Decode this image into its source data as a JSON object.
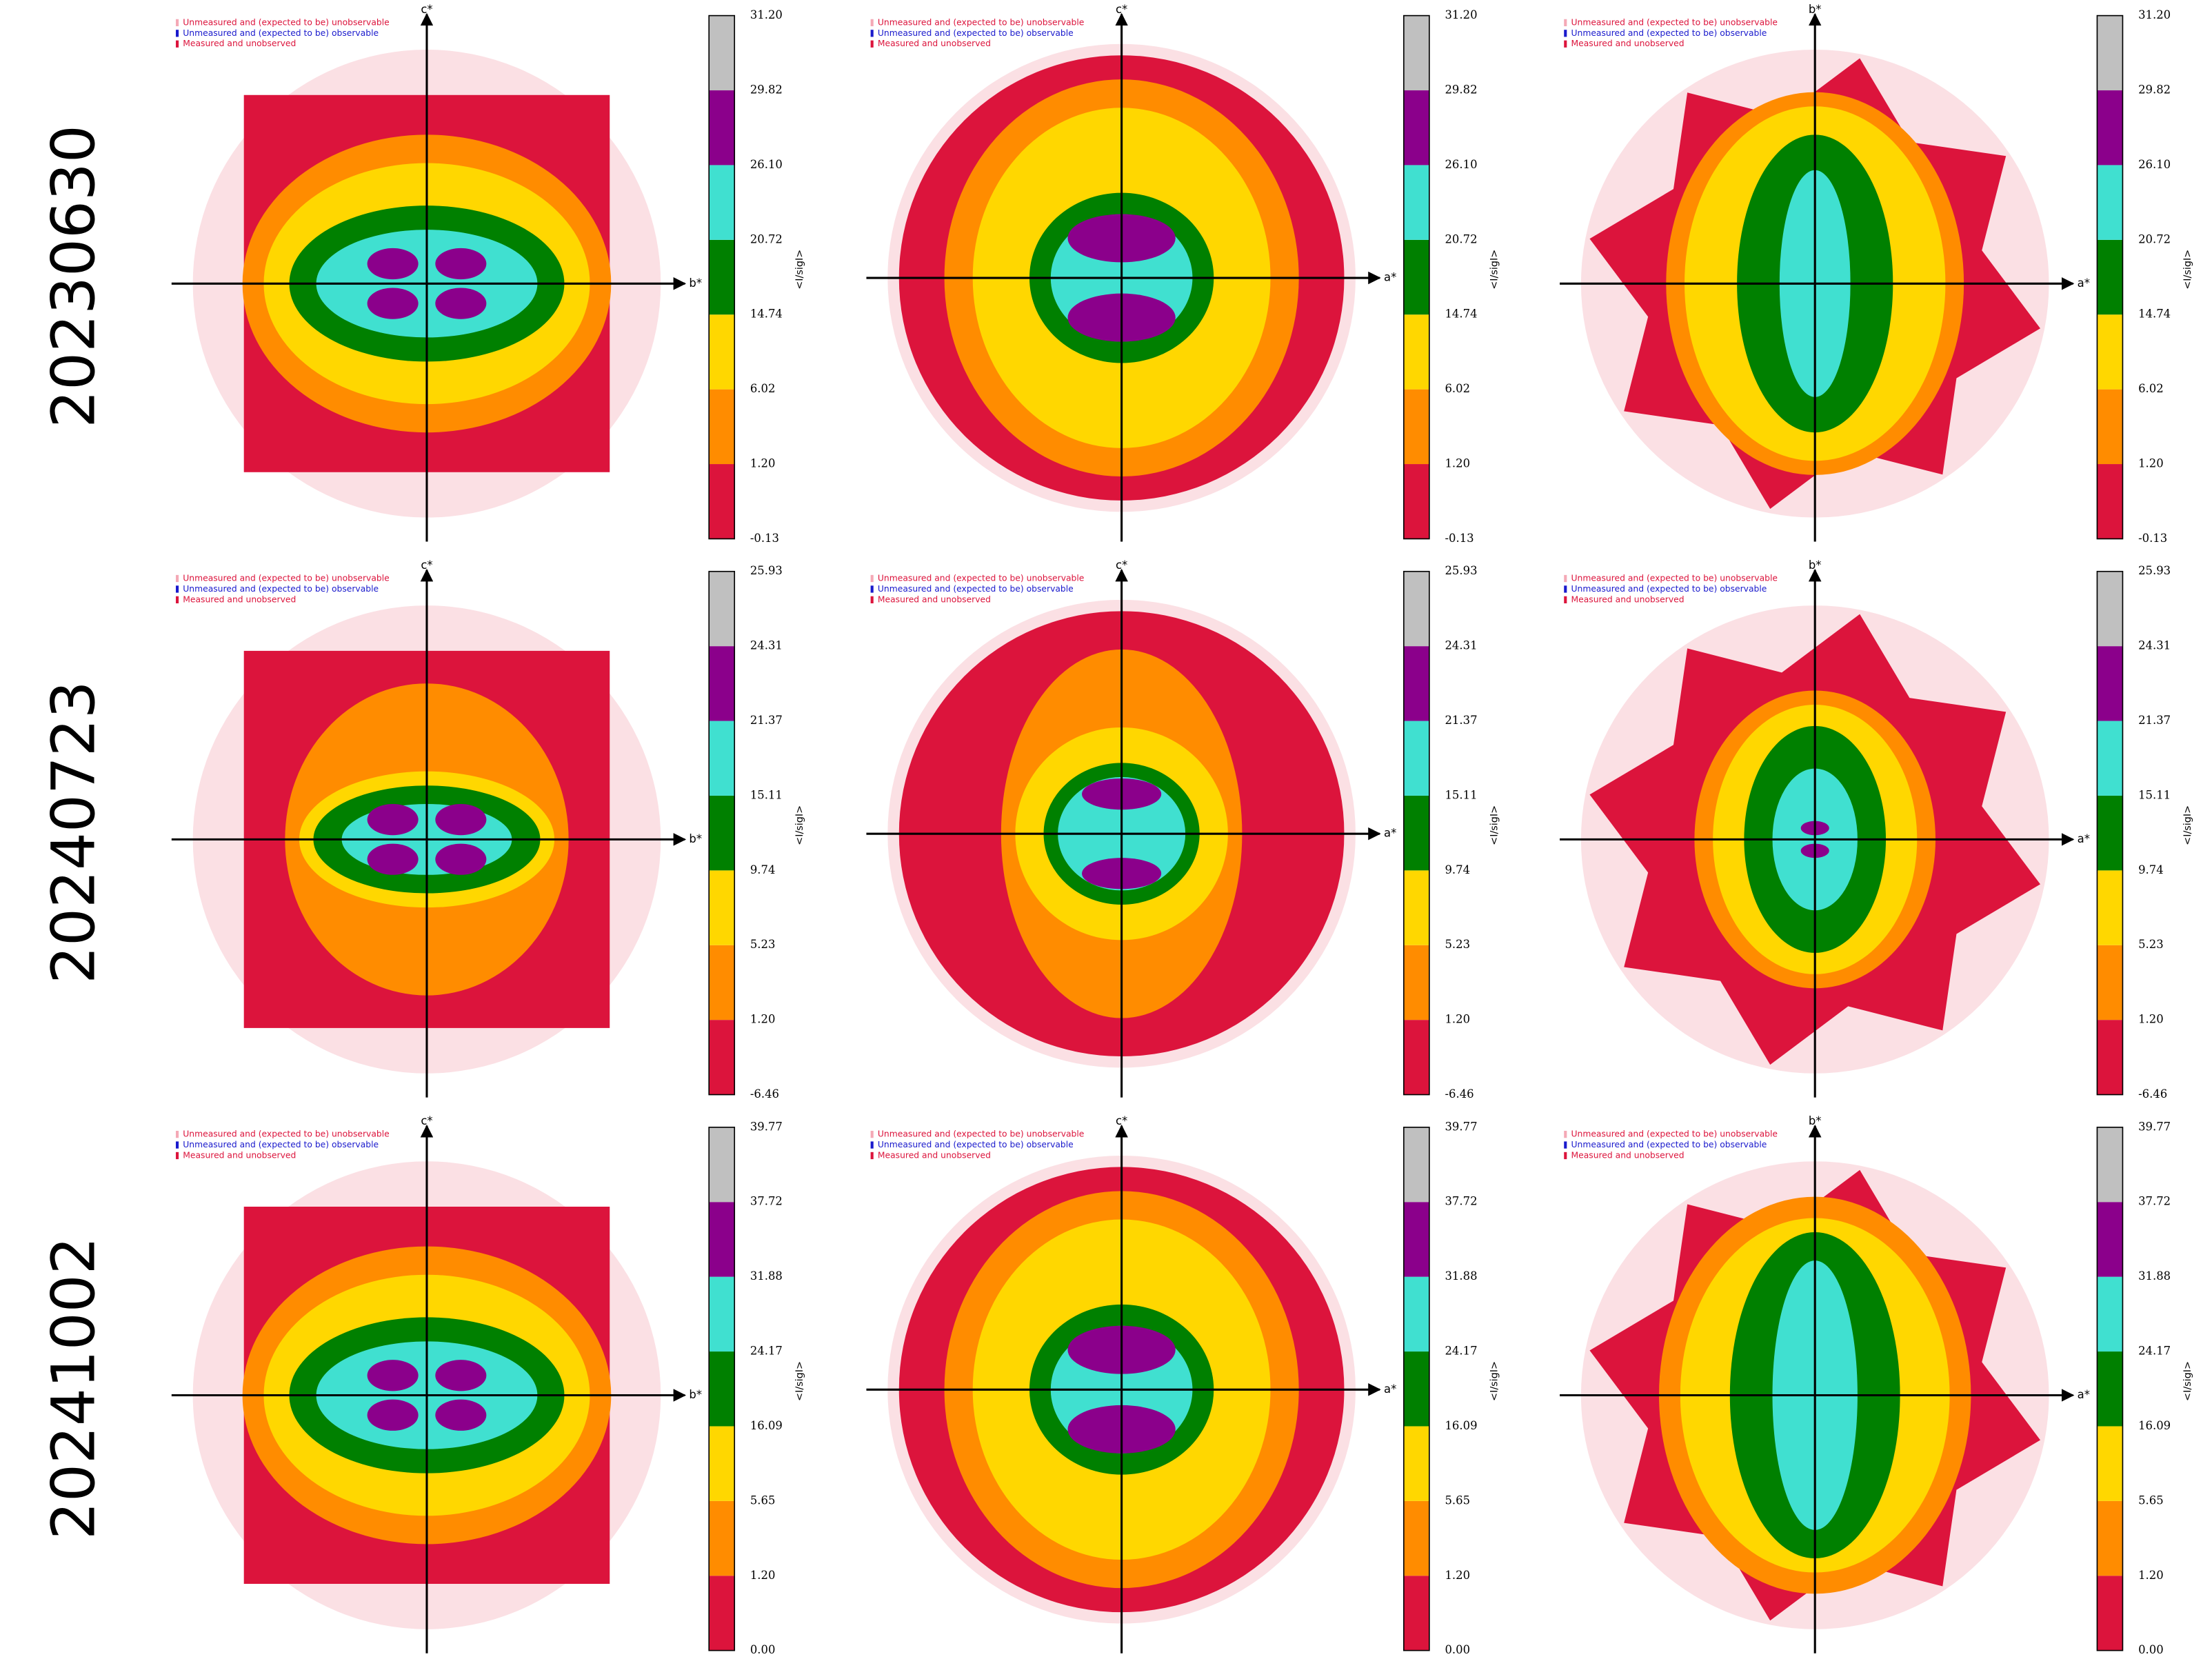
{
  "rows": [
    {
      "label": "20230630",
      "colorbar_ticks": [
        "31.20",
        "29.82",
        "26.10",
        "20.72",
        "14.74",
        "6.02",
        "1.20",
        "-0.13"
      ]
    },
    {
      "label": "20240723",
      "colorbar_ticks": [
        "25.93",
        "24.31",
        "21.37",
        "15.11",
        "9.74",
        "5.23",
        "1.20",
        "-6.46"
      ]
    },
    {
      "label": "20241002",
      "colorbar_ticks": [
        "39.77",
        "37.72",
        "31.88",
        "24.17",
        "16.09",
        "5.65",
        "1.20",
        "0.00"
      ]
    }
  ],
  "legend": [
    "Unmeasured and (expected to be) unobservable",
    "Unmeasured and (expected to be) observable",
    "Measured and unobserved"
  ],
  "colorbar_label": "<I/sigI>",
  "colorbar_colors": [
    "#dc143c",
    "#ff8c00",
    "#ffd700",
    "#008000",
    "#40e0d0",
    "#8b008b",
    "#c0c0c0"
  ],
  "panels": [
    {
      "vertical_axis": "c*",
      "horizontal_axis": "b*"
    },
    {
      "vertical_axis": "c*",
      "horizontal_axis": "a*"
    },
    {
      "vertical_axis": "b*",
      "horizontal_axis": "a*"
    }
  ]
}
